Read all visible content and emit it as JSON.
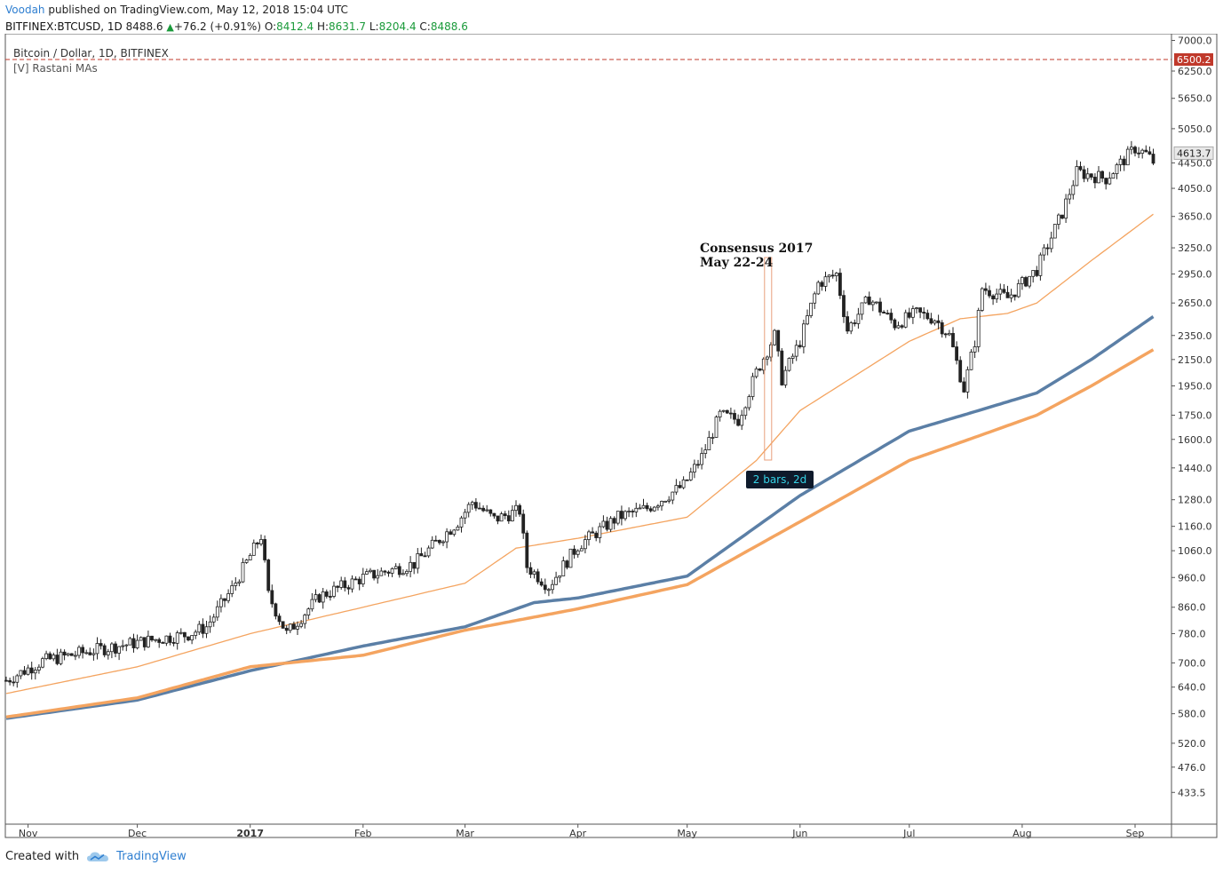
{
  "header": {
    "author": "Voodah",
    "published_text": "published on TradingView.com, May 12, 2018 15:04 UTC",
    "symbol": "BITFINEX:BTCUSD, 1D",
    "price": "8488.6",
    "change": "+76.2 (+0.91%)",
    "open_label": "O:",
    "open": "8412.4",
    "high_label": "H:",
    "high": "8631.7",
    "low_label": "L:",
    "low": "8204.4",
    "close_label": "C:",
    "close": "8488.6"
  },
  "legend": {
    "series_title": "Bitcoin / Dollar, 1D, BITFINEX",
    "indicator": "[V] Rastani MAs"
  },
  "footer": {
    "created_with": "Created with",
    "brand": "TradingView"
  },
  "colors": {
    "up": "#1a9a3a",
    "candle": "#222222",
    "ma_thin": "#f4a460",
    "ma_blue": "#5b7fa6",
    "ma_orange": "#f4a460",
    "price_line": "#c0392b",
    "label_bg": "#0e1a2b",
    "label_fg": "#35d2e6"
  },
  "chart_data": {
    "type": "candlestick",
    "title": "Bitcoin / Dollar, 1D, BITFINEX",
    "x_tick_labels": [
      "Nov",
      "Dec",
      "2017",
      "Feb",
      "Mar",
      "Apr",
      "May",
      "Jun",
      "Jul",
      "Aug",
      "Sep"
    ],
    "y_tick_labels": [
      "7000.0",
      "6250.0",
      "5650.0",
      "5050.0",
      "4450.0",
      "4050.0",
      "3650.0",
      "3250.0",
      "2950.0",
      "2650.0",
      "2350.0",
      "2150.0",
      "1950.0",
      "1750.0",
      "1600.0",
      "1440.0",
      "1280.0",
      "1160.0",
      "1060.0",
      "960.0",
      "860.0",
      "780.0",
      "700.0",
      "640.0",
      "580.0",
      "520.0",
      "476.0",
      "433.5"
    ],
    "y_scale": "log",
    "ylim": [
      400,
      7200
    ],
    "price_line_value": "6500.2",
    "last_price_label": "4613.7",
    "annotation": {
      "title": "Consensus 2017",
      "subtitle": "May 22-24",
      "date": "2017-05-22"
    },
    "range_label": "2 bars, 2d",
    "anchors": [
      [
        "2016-10-26",
        656
      ],
      [
        "2016-11-05",
        705
      ],
      [
        "2016-11-20",
        735
      ],
      [
        "2016-12-05",
        762
      ],
      [
        "2016-12-15",
        778
      ],
      [
        "2016-12-20",
        800
      ],
      [
        "2016-12-27",
        920
      ],
      [
        "2017-01-04",
        1120
      ],
      [
        "2017-01-06",
        900
      ],
      [
        "2017-01-11",
        780
      ],
      [
        "2017-01-20",
        895
      ],
      [
        "2017-02-01",
        960
      ],
      [
        "2017-02-15",
        1010
      ],
      [
        "2017-02-27",
        1180
      ],
      [
        "2017-03-03",
        1270
      ],
      [
        "2017-03-09",
        1190
      ],
      [
        "2017-03-16",
        1230
      ],
      [
        "2017-03-18",
        1000
      ],
      [
        "2017-03-24",
        930
      ],
      [
        "2017-04-01",
        1080
      ],
      [
        "2017-04-12",
        1200
      ],
      [
        "2017-04-20",
        1240
      ],
      [
        "2017-04-30",
        1350
      ],
      [
        "2017-05-05",
        1500
      ],
      [
        "2017-05-10",
        1750
      ],
      [
        "2017-05-15",
        1720
      ],
      [
        "2017-05-20",
        2050
      ],
      [
        "2017-05-25",
        2350
      ],
      [
        "2017-05-27",
        2000
      ],
      [
        "2017-06-01",
        2300
      ],
      [
        "2017-06-06",
        2850
      ],
      [
        "2017-06-11",
        2950
      ],
      [
        "2017-06-14",
        2400
      ],
      [
        "2017-06-20",
        2700
      ],
      [
        "2017-06-27",
        2450
      ],
      [
        "2017-07-03",
        2550
      ],
      [
        "2017-07-08",
        2500
      ],
      [
        "2017-07-12",
        2350
      ],
      [
        "2017-07-16",
        1930
      ],
      [
        "2017-07-19",
        2300
      ],
      [
        "2017-07-21",
        2800
      ],
      [
        "2017-07-28",
        2700
      ],
      [
        "2017-08-05",
        3000
      ],
      [
        "2017-08-12",
        3700
      ],
      [
        "2017-08-16",
        4300
      ],
      [
        "2017-08-24",
        4200
      ],
      [
        "2017-09-01",
        4700
      ],
      [
        "2017-09-04",
        4600
      ],
      [
        "2017-09-06",
        4470
      ]
    ],
    "series": [
      {
        "name": "Bitcoin / Dollar",
        "kind": "candles"
      },
      {
        "kind": "ma_thin",
        "values": [
          [
            "2016-10-26",
            625
          ],
          [
            "2016-12-01",
            690
          ],
          [
            "2017-01-01",
            780
          ],
          [
            "2017-02-01",
            860
          ],
          [
            "2017-03-01",
            940
          ],
          [
            "2017-03-15",
            1070
          ],
          [
            "2017-04-01",
            1110
          ],
          [
            "2017-05-01",
            1200
          ],
          [
            "2017-05-20",
            1480
          ],
          [
            "2017-06-01",
            1780
          ],
          [
            "2017-07-01",
            2300
          ],
          [
            "2017-07-15",
            2500
          ],
          [
            "2017-07-28",
            2550
          ],
          [
            "2017-08-05",
            2650
          ],
          [
            "2017-08-20",
            3100
          ],
          [
            "2017-09-06",
            3680
          ]
        ]
      },
      {
        "kind": "ma_blue",
        "values": [
          [
            "2016-10-26",
            570
          ],
          [
            "2016-12-01",
            610
          ],
          [
            "2017-01-01",
            680
          ],
          [
            "2017-02-01",
            745
          ],
          [
            "2017-03-01",
            800
          ],
          [
            "2017-03-20",
            875
          ],
          [
            "2017-04-01",
            890
          ],
          [
            "2017-05-01",
            965
          ],
          [
            "2017-06-01",
            1300
          ],
          [
            "2017-07-01",
            1650
          ],
          [
            "2017-07-20",
            1780
          ],
          [
            "2017-08-05",
            1900
          ],
          [
            "2017-08-20",
            2150
          ],
          [
            "2017-09-06",
            2520
          ]
        ]
      },
      {
        "kind": "ma_orange",
        "values": [
          [
            "2016-10-26",
            573
          ],
          [
            "2016-12-01",
            615
          ],
          [
            "2017-01-01",
            690
          ],
          [
            "2017-02-01",
            720
          ],
          [
            "2017-03-01",
            790
          ],
          [
            "2017-04-01",
            855
          ],
          [
            "2017-05-01",
            935
          ],
          [
            "2017-06-01",
            1180
          ],
          [
            "2017-07-01",
            1480
          ],
          [
            "2017-07-20",
            1620
          ],
          [
            "2017-08-05",
            1750
          ],
          [
            "2017-08-20",
            1950
          ],
          [
            "2017-09-06",
            2230
          ]
        ]
      }
    ]
  }
}
